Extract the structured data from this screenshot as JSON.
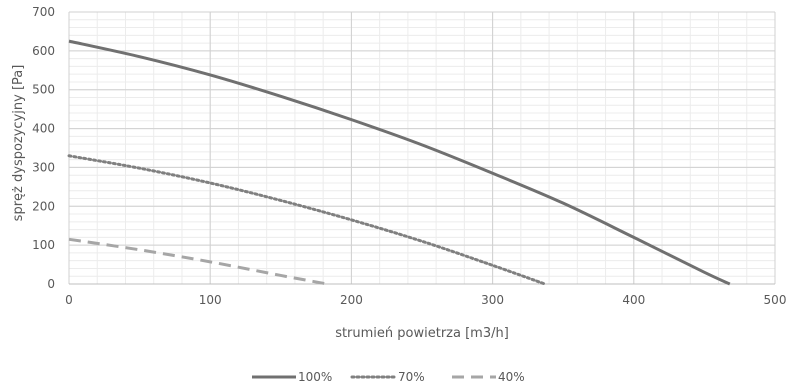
{
  "chart_data": {
    "type": "line",
    "xlabel": "strumień powietrza [m3/h]",
    "ylabel": "spręż dyspozycyjny [Pa]",
    "xlim": [
      0,
      500
    ],
    "ylim": [
      0,
      700
    ],
    "xticks": [
      0,
      100,
      200,
      300,
      400,
      500
    ],
    "yticks": [
      0,
      100,
      200,
      300,
      400,
      500,
      600,
      700
    ],
    "grid": true,
    "minor_grid": true,
    "legend_position": "bottom-center",
    "series": [
      {
        "name": "100%",
        "style": "solid",
        "color": "#707070",
        "x": [
          0,
          50,
          100,
          150,
          200,
          250,
          300,
          350,
          400,
          450,
          468
        ],
        "y": [
          625,
          585,
          538,
          483,
          423,
          358,
          285,
          208,
          120,
          30,
          0
        ]
      },
      {
        "name": "70%",
        "style": "dotted",
        "color": "#808080",
        "x": [
          0,
          50,
          100,
          150,
          200,
          250,
          300,
          337
        ],
        "y": [
          330,
          298,
          260,
          215,
          165,
          110,
          48,
          0
        ]
      },
      {
        "name": "40%",
        "style": "dashed",
        "color": "#a6a6a6",
        "x": [
          0,
          50,
          100,
          150,
          183
        ],
        "y": [
          115,
          88,
          57,
          22,
          0
        ]
      }
    ]
  }
}
